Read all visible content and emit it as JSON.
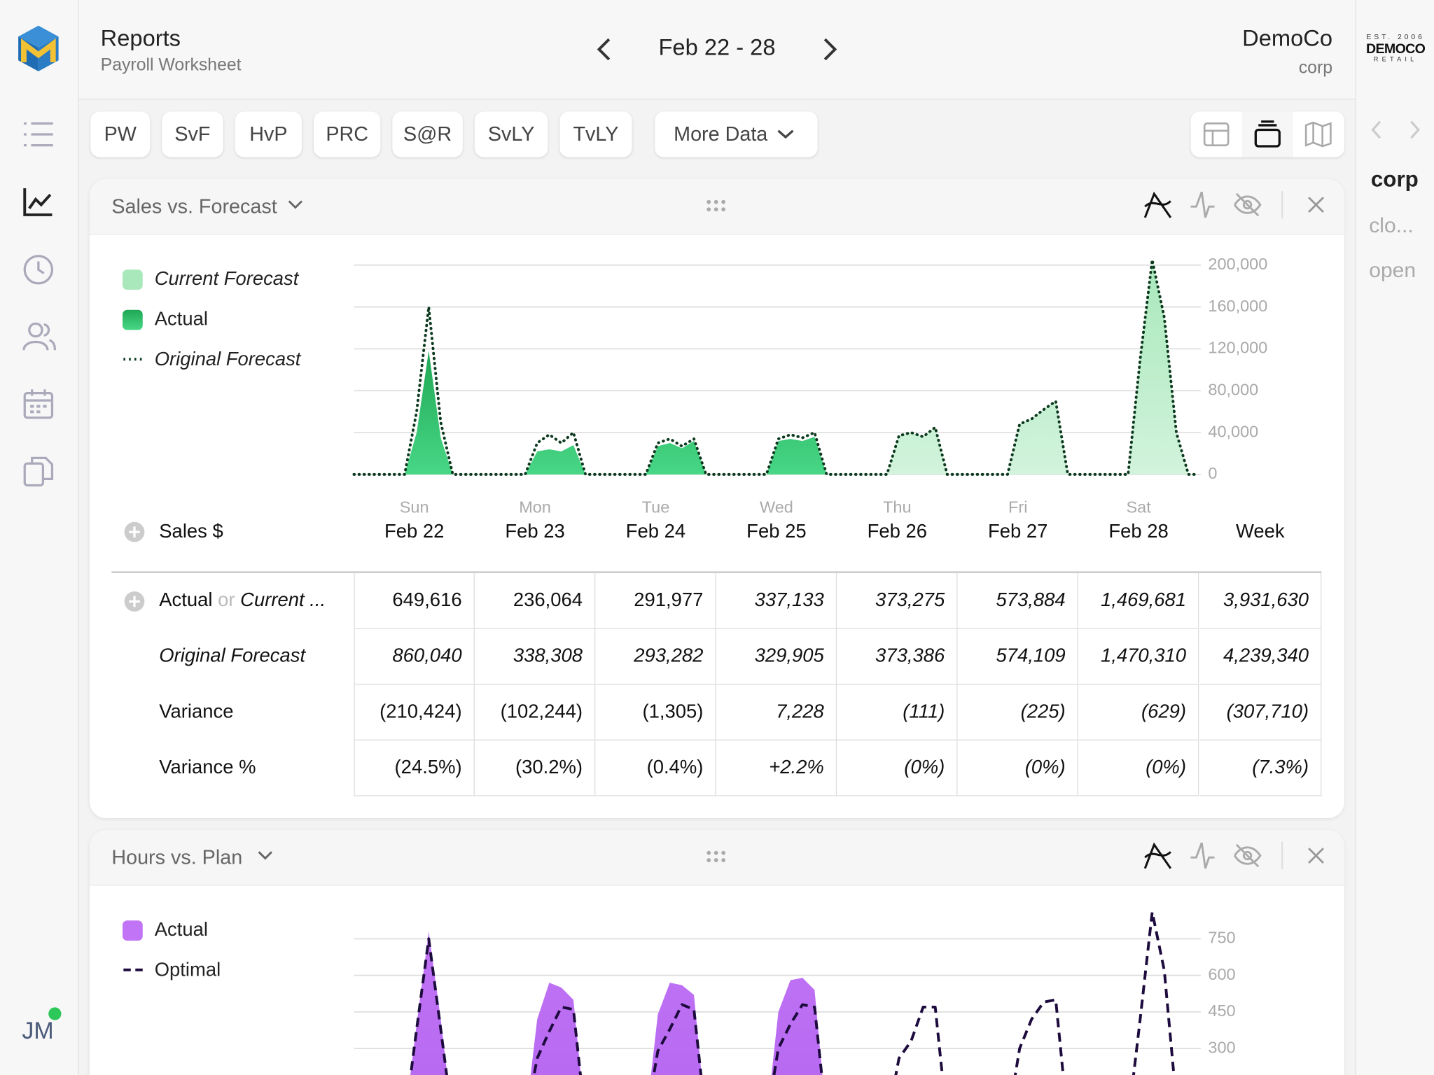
{
  "header": {
    "title": "Reports",
    "subtitle": "Payroll Worksheet",
    "date_range": "Feb 22 - 28",
    "company": "DemoCo",
    "company_sub": "corp",
    "logo": {
      "est": "EST. 2006",
      "name": "DEMOCO",
      "tagline": "RETAIL"
    }
  },
  "sidebar": {
    "user": "JM"
  },
  "tabs": [
    "PW",
    "SvF",
    "HvP",
    "PRC",
    "S@R",
    "SvLY",
    "TvLY"
  ],
  "more": "More Data",
  "side_panel": {
    "title": "corp",
    "items": [
      "clo...",
      "open"
    ]
  },
  "chart_data": [
    {
      "type": "area",
      "title": "Sales vs. Forecast",
      "grid": true,
      "x": [
        0,
        0.42,
        0.52,
        0.62,
        0.72,
        0.82,
        0.92,
        1,
        1.42,
        1.52,
        1.62,
        1.72,
        1.82,
        1.92,
        2,
        2.42,
        2.52,
        2.62,
        2.72,
        2.82,
        2.92,
        3,
        3.42,
        3.52,
        3.62,
        3.72,
        3.82,
        3.92,
        4,
        4.42,
        4.52,
        4.62,
        4.72,
        4.82,
        4.92,
        5,
        5.42,
        5.52,
        5.62,
        5.72,
        5.82,
        5.92,
        6,
        6.42,
        6.52,
        6.62,
        6.72,
        6.82,
        6.92,
        7
      ],
      "xlim": [
        0,
        7
      ],
      "ylim": [
        0,
        200000
      ],
      "yticks": [
        0,
        {
          "value": 40000,
          "label": "40,000"
        },
        {
          "value": 80000,
          "label": "80,000"
        },
        {
          "value": 120000,
          "label": "120,000"
        },
        {
          "value": 160000,
          "label": "160,000"
        },
        {
          "value": 200000,
          "label": "200,000"
        }
      ],
      "series": [
        {
          "name": "Current Forecast",
          "color": "#a9e8bb",
          "style": "area",
          "values": [
            null,
            null,
            null,
            null,
            null,
            null,
            null,
            null,
            null,
            null,
            null,
            null,
            null,
            null,
            null,
            null,
            null,
            null,
            null,
            null,
            null,
            null,
            null,
            null,
            null,
            null,
            null,
            null,
            0,
            0,
            37000,
            40000,
            36000,
            45000,
            0,
            0,
            0,
            48000,
            53000,
            62000,
            70000,
            0,
            0,
            0,
            110000,
            203000,
            150000,
            40000,
            0,
            0
          ]
        },
        {
          "name": "Actual",
          "color": "#27b45e",
          "style": "area",
          "values": [
            0,
            0,
            40000,
            118000,
            35000,
            0,
            0,
            0,
            0,
            22000,
            24000,
            22000,
            28000,
            0,
            0,
            0,
            27000,
            30000,
            25000,
            32000,
            0,
            0,
            0,
            32000,
            34000,
            32000,
            36000,
            0,
            null,
            null,
            null,
            null,
            null,
            null,
            null,
            null,
            null,
            null,
            null,
            null,
            null,
            null,
            null,
            null,
            null,
            null,
            null,
            null,
            null,
            null
          ]
        },
        {
          "name": "Original Forecast",
          "color": "#0c3a1e",
          "style": "dotted",
          "values": [
            0,
            0,
            60000,
            160000,
            50000,
            0,
            0,
            0,
            0,
            30000,
            38000,
            30000,
            40000,
            0,
            0,
            0,
            30000,
            34000,
            27000,
            34000,
            0,
            0,
            0,
            34000,
            38000,
            35000,
            40000,
            0,
            0,
            0,
            37000,
            40000,
            36000,
            45000,
            0,
            0,
            0,
            48000,
            53000,
            62000,
            70000,
            0,
            0,
            0,
            110000,
            205000,
            150000,
            40000,
            0,
            0
          ]
        }
      ]
    },
    {
      "type": "area",
      "title": "Hours vs. Plan",
      "grid": true,
      "x": [
        0,
        0.42,
        0.52,
        0.62,
        0.72,
        0.82,
        0.92,
        1,
        1.42,
        1.52,
        1.62,
        1.72,
        1.82,
        1.92,
        2,
        2.42,
        2.52,
        2.62,
        2.72,
        2.82,
        2.92,
        3,
        3.42,
        3.52,
        3.62,
        3.72,
        3.82,
        3.92,
        4,
        4.42,
        4.52,
        4.62,
        4.72,
        4.82,
        4.92,
        5,
        5.42,
        5.52,
        5.62,
        5.72,
        5.82,
        5.92,
        6,
        6.42,
        6.52,
        6.62,
        6.72,
        6.82,
        6.92,
        7
      ],
      "xlim": [
        0,
        7
      ],
      "ylim": [
        0,
        900
      ],
      "yticks": [
        300,
        450,
        600,
        750
      ],
      "series": [
        {
          "name": "Actual",
          "color": "#c174f5",
          "style": "area",
          "values": [
            0,
            0,
            400,
            780,
            420,
            0,
            0,
            0,
            0,
            420,
            570,
            550,
            500,
            0,
            0,
            0,
            440,
            570,
            560,
            520,
            0,
            0,
            0,
            450,
            580,
            590,
            540,
            0,
            null,
            null,
            null,
            null,
            null,
            null,
            null,
            null,
            null,
            null,
            null,
            null,
            null,
            null,
            null,
            null,
            null,
            null,
            null,
            null,
            null,
            null
          ]
        },
        {
          "name": "Optimal",
          "color": "#1d0b3d",
          "style": "dashed",
          "values": [
            0,
            0,
            380,
            750,
            380,
            0,
            0,
            0,
            0,
            260,
            370,
            470,
            460,
            0,
            0,
            0,
            290,
            380,
            480,
            460,
            0,
            0,
            0,
            300,
            400,
            480,
            470,
            0,
            0,
            0,
            260,
            330,
            470,
            470,
            0,
            0,
            0,
            300,
            420,
            490,
            500,
            0,
            0,
            0,
            420,
            860,
            620,
            80,
            0,
            0
          ]
        }
      ]
    }
  ],
  "table": {
    "row_header": "Sales $",
    "columns": [
      {
        "weekday": "Sun",
        "label": "Feb 22"
      },
      {
        "weekday": "Mon",
        "label": "Feb 23"
      },
      {
        "weekday": "Tue",
        "label": "Feb 24"
      },
      {
        "weekday": "Wed",
        "label": "Feb 25"
      },
      {
        "weekday": "Thu",
        "label": "Feb 26"
      },
      {
        "weekday": "Fri",
        "label": "Feb 27"
      },
      {
        "weekday": "Sat",
        "label": "Feb 28"
      },
      {
        "label": "Week"
      }
    ],
    "rows": [
      {
        "label_parts": [
          "Actual",
          "or",
          "Current ..."
        ],
        "cells": [
          "649,616",
          "236,064",
          "291,977",
          "337,133",
          "373,275",
          "573,884",
          "1,469,681",
          "3,931,630"
        ]
      },
      {
        "label": "Original Forecast",
        "cells": [
          "860,040",
          "338,308",
          "293,282",
          "329,905",
          "373,386",
          "574,109",
          "1,470,310",
          "4,239,340"
        ]
      },
      {
        "label": "Variance",
        "cells": [
          "(210,424)",
          "(102,244)",
          "(1,305)",
          "7,228",
          "(111)",
          "(225)",
          "(629)",
          "(307,710)"
        ]
      },
      {
        "label": "Variance %",
        "cells": [
          "(24.5%)",
          "(30.2%)",
          "(0.4%)",
          "+2.2%",
          "(0%)",
          "(0%)",
          "(0%)",
          "(7.3%)"
        ]
      }
    ]
  }
}
